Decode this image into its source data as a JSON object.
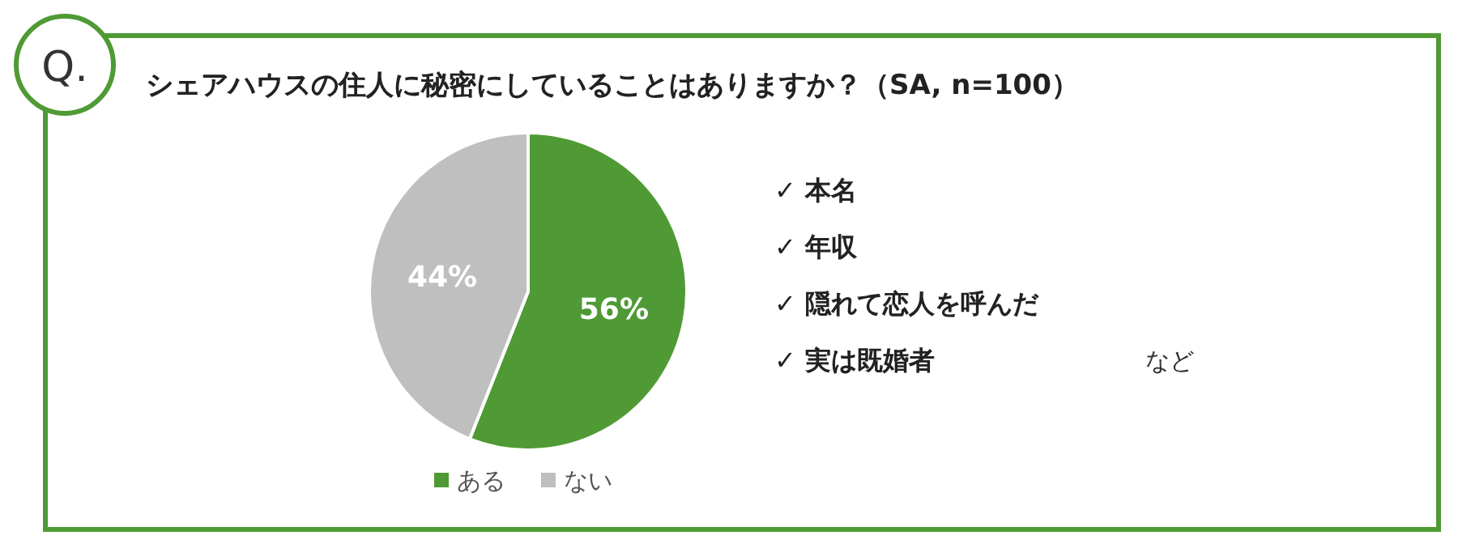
{
  "chart_data": {
    "type": "pie",
    "title": "シェアハウスの住人に秘密にしていることはありますか？（SA, n=100）",
    "categories": [
      "ある",
      "ない"
    ],
    "values": [
      56,
      44
    ],
    "colors": [
      "#4f9a35",
      "#bfbfbf"
    ],
    "value_labels": [
      "56%",
      "44%"
    ],
    "legend": "bottom",
    "annotations": [
      "Q.",
      "✓ 本名",
      "✓ 年収",
      "✓ 隠れて恋人を呼んだ",
      "✓ 実は既婚者",
      "など"
    ]
  }
}
